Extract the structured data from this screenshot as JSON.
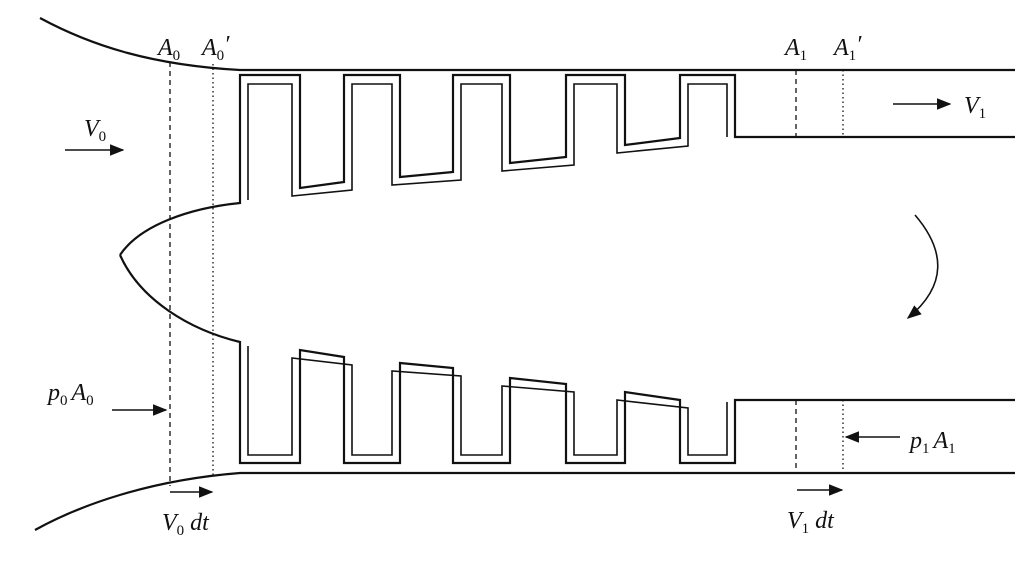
{
  "labels": {
    "A0": {
      "main": "A",
      "sub": "0",
      "prime": ""
    },
    "A0p": {
      "main": "A",
      "sub": "0",
      "prime": "′"
    },
    "A1": {
      "main": "A",
      "sub": "1",
      "prime": ""
    },
    "A1p": {
      "main": "A",
      "sub": "1",
      "prime": "′"
    },
    "V0": {
      "main": "V",
      "sub": "0"
    },
    "V1": {
      "main": "V",
      "sub": "1"
    },
    "p0A0": {
      "p": "p",
      "psub": "0",
      "a": "A",
      "asub": "0"
    },
    "p1A1": {
      "p": "p",
      "psub": "1",
      "a": "A",
      "asub": "1"
    },
    "V0dt": {
      "main": "V",
      "sub": "0",
      "rest": "dt"
    },
    "V1dt": {
      "main": "V",
      "sub": "1",
      "rest": "dt"
    }
  }
}
